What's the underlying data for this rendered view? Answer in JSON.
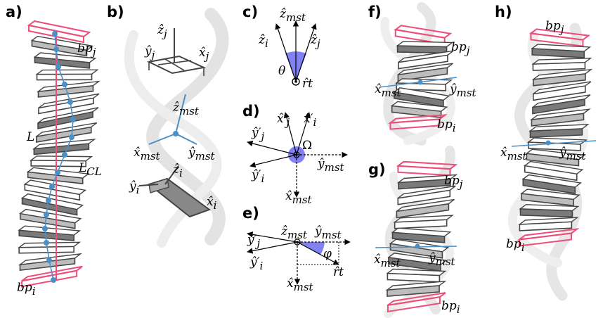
{
  "panels": {
    "a": {
      "letter": "a)",
      "labels": {
        "bp_j": "bp",
        "bp_j_sub": "j",
        "bp_i": "bp",
        "bp_i_sub": "i",
        "L": "L",
        "L_CL": "L",
        "L_CL_sub": "CL"
      }
    },
    "b": {
      "letter": "b)",
      "labels": {
        "zj": "ẑ",
        "zj_sub": "j",
        "yj": "ŷ",
        "yj_sub": "j",
        "xj": "x̂",
        "xj_sub": "j",
        "zmst": "ẑ",
        "zmst_sub": "mst",
        "xmst": "x̂",
        "xmst_sub": "mst",
        "ymst": "ŷ",
        "ymst_sub": "mst",
        "zi": "ẑ",
        "zi_sub": "i",
        "yi": "ŷ",
        "yi_sub": "i",
        "xi": "x̂",
        "xi_sub": "i"
      }
    },
    "c": {
      "letter": "c)",
      "labels": {
        "zmst": "ẑ",
        "zmst_sub": "mst",
        "zi": "ẑ",
        "zi_sub": "i",
        "zj": "ẑ",
        "zj_sub": "j",
        "theta": "θ",
        "rt": "r̂t"
      }
    },
    "d": {
      "letter": "d)",
      "labels": {
        "xj": "x̂′",
        "xj_sub": "j",
        "xi": "x̂′",
        "xi_sub": "i",
        "yj": "ŷ′",
        "yj_sub": "j",
        "yi": "ŷ′",
        "yi_sub": "i",
        "omega": "Ω",
        "ymst": "ŷ",
        "ymst_sub": "mst",
        "xmst": "x̂",
        "xmst_sub": "mst"
      }
    },
    "e": {
      "letter": "e)",
      "labels": {
        "zmst": "ẑ",
        "zmst_sub": "mst",
        "ymst": "ŷ",
        "ymst_sub": "mst",
        "yj": "ŷ′",
        "yj_sub": "j",
        "yi": "ŷ′",
        "yi_sub": "i",
        "phi": "φ",
        "rt": "r̂t",
        "xmst": "x̂",
        "xmst_sub": "mst"
      }
    },
    "f": {
      "letter": "f)",
      "labels": {
        "bp_j": "bp",
        "bp_j_sub": "j",
        "bp_i": "bp",
        "bp_i_sub": "i",
        "xmst": "x̂",
        "xmst_sub": "mst",
        "ymst": "ŷ",
        "ymst_sub": "mst"
      }
    },
    "g": {
      "letter": "g)",
      "labels": {
        "bp_j": "bp",
        "bp_j_sub": "j",
        "bp_i": "bp",
        "bp_i_sub": "i",
        "xmst": "x̂",
        "xmst_sub": "mst",
        "ymst": "ŷ",
        "ymst_sub": "mst"
      }
    },
    "h": {
      "letter": "h)",
      "labels": {
        "bp_j": "bp",
        "bp_j_sub": "j",
        "bp_i": "bp",
        "bp_i_sub": "i",
        "xmst": "x̂",
        "xmst_sub": "mst",
        "ymst": "ŷ",
        "ymst_sub": "mst"
      }
    }
  },
  "colors": {
    "pink": "#ee4d7a",
    "blue": "#4a90c8",
    "slab_dark": "#555555",
    "slab_light": "#bdbdbd",
    "backbone": "#e6e6e6",
    "angle_fill": "#6b6bf0"
  }
}
